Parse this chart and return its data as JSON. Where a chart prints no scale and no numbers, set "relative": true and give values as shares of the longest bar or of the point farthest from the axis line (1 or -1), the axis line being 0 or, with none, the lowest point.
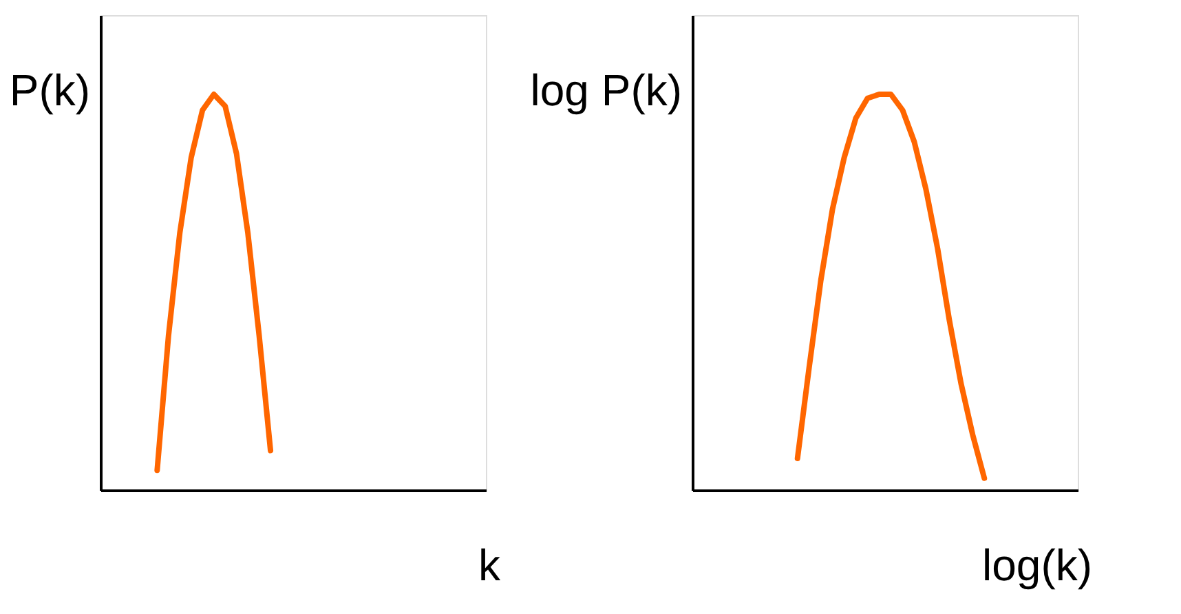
{
  "chart_data": [
    {
      "type": "line",
      "xlabel": "k",
      "ylabel": "P(k)",
      "relative": true,
      "tick_labels": false,
      "color": "#ff6600",
      "categories": [
        null,
        null,
        null,
        null,
        null,
        null,
        null,
        null,
        null,
        null,
        null,
        null,
        null,
        null,
        null,
        null,
        null,
        null,
        null,
        null,
        null,
        null,
        null,
        null,
        null,
        null,
        null,
        null,
        null,
        null,
        null,
        null,
        null,
        null,
        null
      ],
      "values": [
        null,
        null,
        null,
        null,
        null,
        0.05,
        0.39,
        0.65,
        0.84,
        0.96,
        1.0,
        0.97,
        0.85,
        0.65,
        0.39,
        0.1,
        null,
        null,
        null,
        null,
        null,
        null,
        null,
        null,
        null,
        null,
        null,
        null,
        null,
        null,
        null,
        null,
        null,
        null,
        null
      ]
    },
    {
      "type": "line",
      "xlabel": "log(k)",
      "ylabel": "log P(k)",
      "relative": true,
      "tick_labels": false,
      "color": "#ff6600",
      "categories": [
        null,
        null,
        null,
        null,
        null,
        null,
        null,
        null,
        null,
        null,
        null,
        null,
        null,
        null,
        null,
        null,
        null,
        null,
        null,
        null,
        null,
        null,
        null,
        null,
        null,
        null,
        null,
        null,
        null,
        null,
        null,
        null,
        null,
        null
      ],
      "values": [
        null,
        null,
        null,
        null,
        null,
        null,
        null,
        null,
        null,
        0.08,
        0.31,
        0.53,
        0.71,
        0.84,
        0.94,
        0.99,
        1.0,
        1.0,
        0.96,
        0.88,
        0.76,
        0.61,
        0.43,
        0.27,
        0.14,
        0.03,
        null,
        null,
        null,
        null,
        null,
        null,
        null,
        null
      ]
    }
  ]
}
